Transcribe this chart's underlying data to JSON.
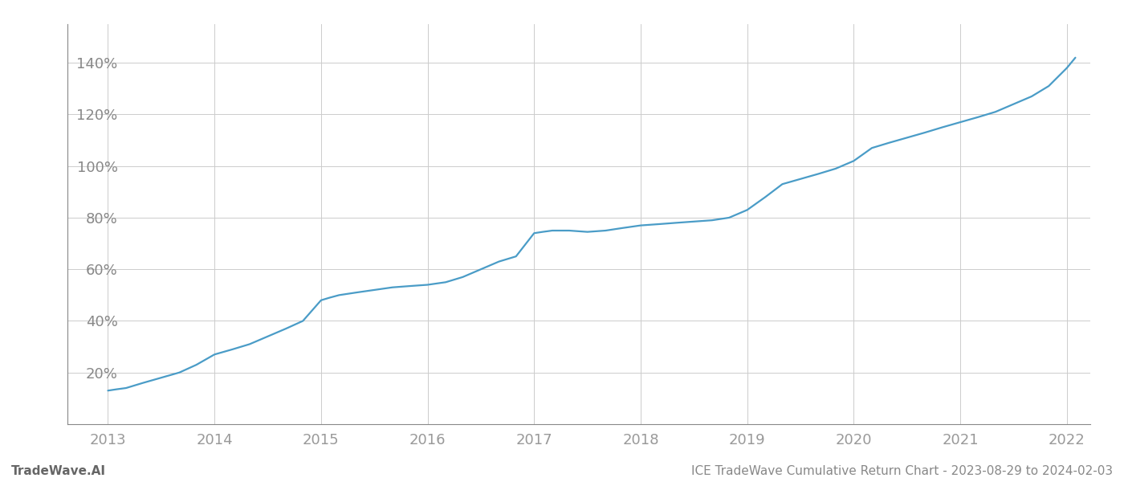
{
  "title": "",
  "footer_left": "TradeWave.AI",
  "footer_right": "ICE TradeWave Cumulative Return Chart - 2023-08-29 to 2024-02-03",
  "line_color": "#4a9cc7",
  "background_color": "#ffffff",
  "grid_color": "#cccccc",
  "x_years": [
    2013,
    2014,
    2015,
    2016,
    2017,
    2018,
    2019,
    2020,
    2021,
    2022
  ],
  "data_x": [
    2013.0,
    2013.08,
    2013.17,
    2013.25,
    2013.33,
    2013.5,
    2013.67,
    2013.83,
    2014.0,
    2014.17,
    2014.33,
    2014.5,
    2014.67,
    2014.83,
    2015.0,
    2015.08,
    2015.17,
    2015.33,
    2015.5,
    2015.67,
    2015.83,
    2016.0,
    2016.17,
    2016.33,
    2016.5,
    2016.67,
    2016.83,
    2017.0,
    2017.08,
    2017.17,
    2017.33,
    2017.5,
    2017.67,
    2017.83,
    2018.0,
    2018.17,
    2018.33,
    2018.5,
    2018.67,
    2018.83,
    2019.0,
    2019.17,
    2019.33,
    2019.5,
    2019.67,
    2019.83,
    2020.0,
    2020.17,
    2020.33,
    2020.5,
    2020.67,
    2020.83,
    2021.0,
    2021.17,
    2021.33,
    2021.5,
    2021.67,
    2021.83,
    2022.0,
    2022.08
  ],
  "data_y": [
    13,
    13.5,
    14,
    15,
    16,
    18,
    20,
    23,
    27,
    29,
    31,
    34,
    37,
    40,
    48,
    49,
    50,
    51,
    52,
    53,
    53.5,
    54,
    55,
    57,
    60,
    63,
    65,
    74,
    74.5,
    75,
    75,
    74.5,
    75,
    76,
    77,
    77.5,
    78,
    78.5,
    79,
    80,
    83,
    88,
    93,
    95,
    97,
    99,
    102,
    107,
    109,
    111,
    113,
    115,
    117,
    119,
    121,
    124,
    127,
    131,
    138,
    142
  ],
  "ylim": [
    0,
    155
  ],
  "yticks": [
    20,
    40,
    60,
    80,
    100,
    120,
    140
  ],
  "xlim": [
    2012.62,
    2022.22
  ],
  "tick_fontsize": 13,
  "footer_fontsize": 11,
  "line_width": 1.6
}
